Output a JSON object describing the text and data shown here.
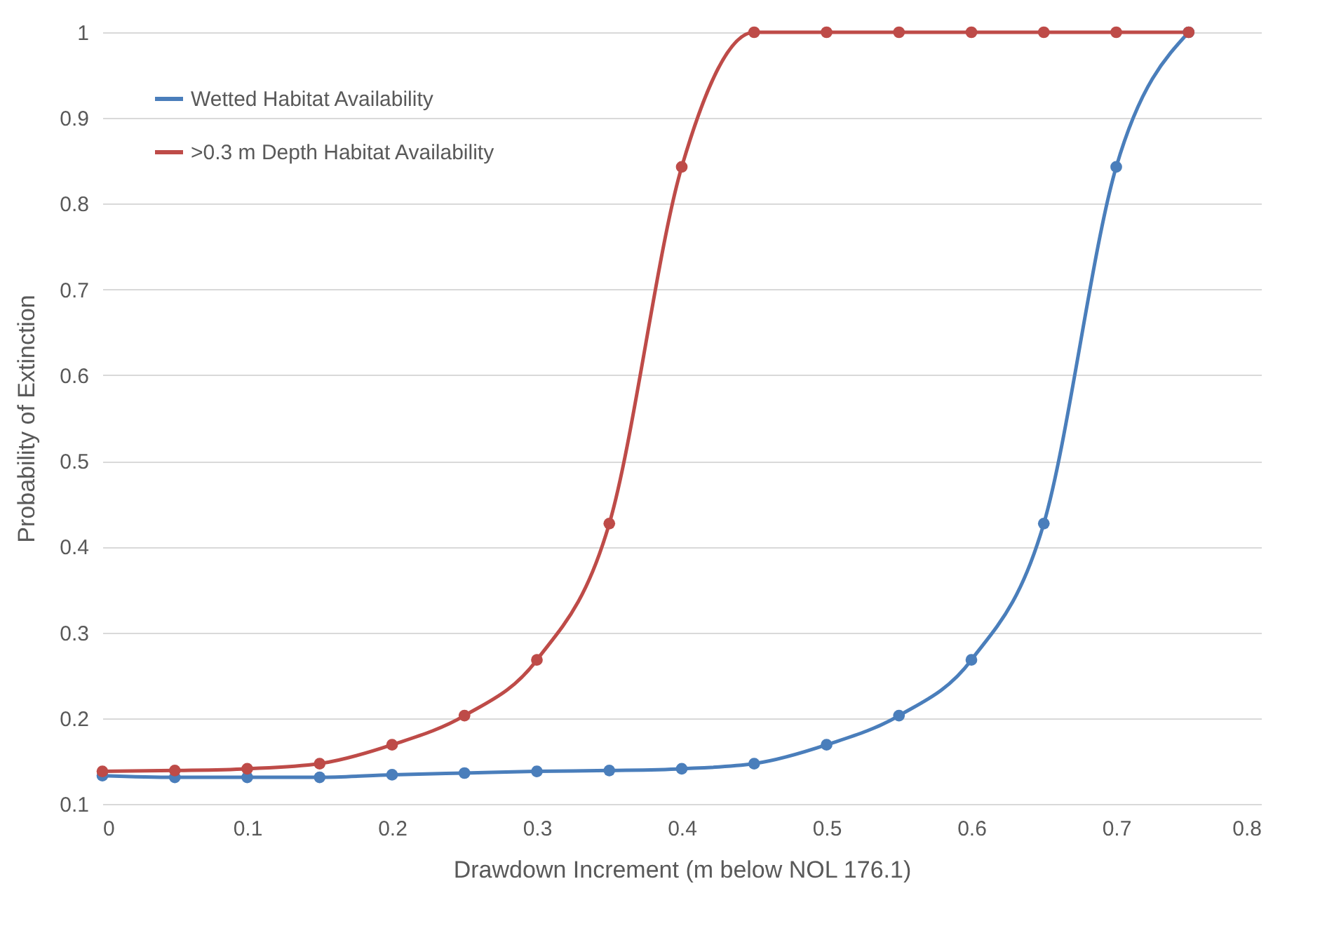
{
  "chart_data": {
    "type": "line",
    "xlabel": "Drawdown Increment (m below NOL 176.1)",
    "ylabel": "Probability of Extinction",
    "x": [
      0,
      0.05,
      0.1,
      0.15,
      0.2,
      0.25,
      0.3,
      0.35,
      0.4,
      0.45,
      0.5,
      0.55,
      0.6,
      0.65,
      0.7,
      0.75
    ],
    "series": [
      {
        "name": "Wetted Habitat Availability",
        "color": "#4a7ebb",
        "values": [
          0.133,
          0.131,
          0.131,
          0.131,
          0.134,
          0.136,
          0.138,
          0.139,
          0.141,
          0.147,
          0.169,
          0.203,
          0.268,
          0.427,
          0.843,
          1
        ]
      },
      {
        "name": ">0.3 m Depth Habitat Availability",
        "color": "#be4b48",
        "values": [
          0.138,
          0.139,
          0.141,
          0.147,
          0.169,
          0.203,
          0.268,
          0.427,
          0.843,
          1,
          1,
          1,
          1,
          1,
          1,
          1
        ]
      }
    ],
    "xlim": [
      0,
      0.8
    ],
    "xticks": [
      0,
      0.1,
      0.2,
      0.3,
      0.4,
      0.5,
      0.6,
      0.7,
      0.8
    ],
    "ylim": [
      0.1,
      1
    ],
    "yticks": [
      0.1,
      0.2,
      0.3,
      0.4,
      0.5,
      0.6,
      0.7,
      0.8,
      0.9,
      1
    ],
    "grid": "y",
    "legend": "top left",
    "marker": "circle",
    "line_style": "solid"
  }
}
